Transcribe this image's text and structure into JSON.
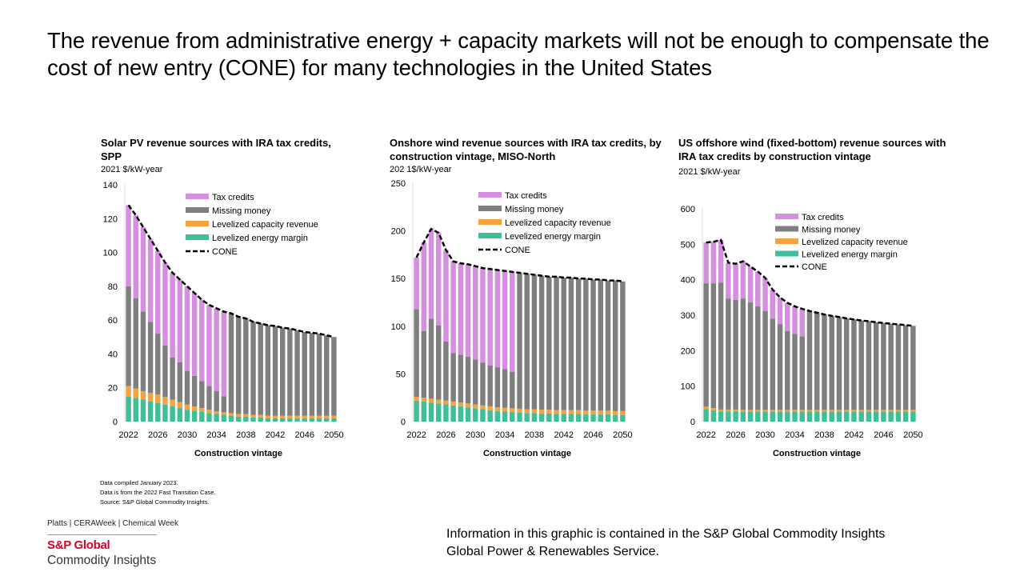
{
  "headline": "The revenue from administrative energy + capacity markets will not be enough to compensate the cost of new entry (CONE) for many technologies in the United States",
  "colors": {
    "tax_credits": "#d58ee0",
    "missing_money": "#7f7f7f",
    "capacity": "#f5a33f",
    "energy": "#3fbf98",
    "cone": "#000000"
  },
  "chart_data": [
    {
      "type": "bar",
      "stacked": true,
      "title": "Solar PV revenue sources with IRA tax credits, SPP",
      "unit": "2021 $/kW-year",
      "xlabel": "Construction vintage",
      "ylim": [
        0,
        140
      ],
      "y_ticks": [
        0,
        20,
        40,
        60,
        80,
        100,
        120,
        140
      ],
      "x_tick_labels": [
        "2022",
        "2026",
        "2030",
        "2034",
        "2038",
        "2042",
        "2046",
        "2050"
      ],
      "categories": [
        2022,
        2023,
        2024,
        2025,
        2026,
        2027,
        2028,
        2029,
        2030,
        2031,
        2032,
        2033,
        2034,
        2035,
        2036,
        2037,
        2038,
        2039,
        2040,
        2041,
        2042,
        2043,
        2044,
        2045,
        2046,
        2047,
        2048,
        2049,
        2050
      ],
      "legend": [
        "Tax credits",
        "Missing money",
        "Levelized capacity revenue",
        "Levelized energy margin",
        "CONE"
      ],
      "series": [
        {
          "name": "Levelized energy margin",
          "values": [
            15,
            14,
            13,
            12,
            11,
            10,
            9,
            8,
            7,
            6.5,
            6,
            5,
            4.5,
            4,
            3.5,
            3,
            3,
            2.5,
            2.5,
            2,
            2,
            2,
            2,
            2,
            2,
            2,
            2,
            2,
            2
          ]
        },
        {
          "name": "Levelized capacity revenue",
          "values": [
            6,
            5.5,
            5,
            5,
            5,
            4.5,
            4,
            3.5,
            3,
            2.5,
            2,
            2,
            1.5,
            1.5,
            1.5,
            1.5,
            1.5,
            1.5,
            1.5,
            1.5,
            1.5,
            1.5,
            1.5,
            1.5,
            1.5,
            1.5,
            1.5,
            1.5,
            1.5
          ]
        },
        {
          "name": "Missing money",
          "values": [
            59,
            53.5,
            47,
            42,
            36,
            30.5,
            25,
            23.5,
            20,
            18,
            16,
            14,
            12,
            9.5,
            59,
            57.5,
            56.5,
            55,
            54,
            53.5,
            53,
            52,
            51.5,
            50.5,
            49.5,
            49,
            48.5,
            47.5,
            46.5
          ]
        },
        {
          "name": "Tax credits",
          "values": [
            48,
            49,
            50,
            49,
            49,
            49,
            50,
            49,
            50,
            49,
            48,
            48,
            49,
            50,
            0,
            0,
            0,
            0,
            0,
            0,
            0,
            0,
            0,
            0,
            0,
            0,
            0,
            0,
            0
          ]
        }
      ],
      "cone": [
        128,
        122,
        115,
        108,
        101,
        94,
        88,
        84,
        80,
        76,
        72,
        69,
        67,
        65,
        64,
        62,
        61,
        59,
        58,
        57,
        56.5,
        55.5,
        55,
        54,
        53,
        52.5,
        52,
        51,
        50
      ]
    },
    {
      "type": "bar",
      "stacked": true,
      "title": "Onshore wind revenue sources with IRA tax credits, by construction vintage, MISO-North",
      "unit": "202 1$/kW-year",
      "xlabel": "Construction vintage",
      "ylim": [
        0,
        250
      ],
      "y_ticks": [
        0,
        50,
        100,
        150,
        200,
        250
      ],
      "x_tick_labels": [
        "2022",
        "2026",
        "2030",
        "2034",
        "2038",
        "2042",
        "2046",
        "2050"
      ],
      "categories": [
        2022,
        2023,
        2024,
        2025,
        2026,
        2027,
        2028,
        2029,
        2030,
        2031,
        2032,
        2033,
        2034,
        2035,
        2036,
        2037,
        2038,
        2039,
        2040,
        2041,
        2042,
        2043,
        2044,
        2045,
        2046,
        2047,
        2048,
        2049,
        2050
      ],
      "legend": [
        "Tax credits",
        "Missing money",
        "Levelized capacity revenue",
        "Levelized energy margin",
        "CONE"
      ],
      "series": [
        {
          "name": "Levelized energy margin",
          "values": [
            22,
            21,
            20,
            19,
            18,
            17,
            16,
            15,
            14,
            13,
            12,
            11,
            10.5,
            10,
            9.5,
            9,
            9,
            8.5,
            8.5,
            8,
            8,
            8,
            8,
            7.5,
            7.5,
            7.5,
            7.5,
            7,
            7
          ]
        },
        {
          "name": "Levelized capacity revenue",
          "values": [
            4,
            4,
            4,
            4,
            4,
            4,
            4,
            4,
            4,
            4,
            4,
            4,
            4,
            4,
            4,
            4,
            4,
            4,
            4,
            4,
            4,
            4,
            4,
            4,
            4,
            4,
            4,
            4,
            4
          ]
        },
        {
          "name": "Missing money",
          "values": [
            92,
            70,
            84,
            78,
            62,
            51,
            50,
            49,
            47,
            45,
            43,
            42,
            40.5,
            38,
            142.5,
            142,
            141,
            140.5,
            139.5,
            140,
            139,
            139,
            138,
            138.5,
            137.5,
            137.5,
            136.5,
            137,
            136
          ]
        },
        {
          "name": "Tax credits",
          "values": [
            54,
            93,
            94,
            97,
            96,
            96,
            96,
            97,
            98,
            99,
            101,
            102,
            103,
            105,
            0,
            0,
            0,
            0,
            0,
            0,
            0,
            0,
            0,
            0,
            0,
            0,
            0,
            0,
            0
          ]
        }
      ],
      "cone": [
        172,
        188,
        202,
        198,
        180,
        168,
        166,
        165,
        163,
        161,
        160,
        159,
        158,
        157,
        156,
        155,
        154,
        153,
        152,
        152,
        151,
        151,
        150,
        150,
        149,
        149,
        148,
        148,
        147
      ]
    },
    {
      "type": "bar",
      "stacked": true,
      "title": "US offshore wind (fixed-bottom) revenue sources with IRA tax credits by construction vintage",
      "unit": "2021 $/kW-year",
      "xlabel": "Construction vintage",
      "ylim": [
        0,
        600
      ],
      "y_ticks": [
        0,
        100,
        200,
        300,
        400,
        500,
        600
      ],
      "x_tick_labels": [
        "2022",
        "2026",
        "2030",
        "2034",
        "2038",
        "2042",
        "2046",
        "2050"
      ],
      "categories": [
        2022,
        2023,
        2024,
        2025,
        2026,
        2027,
        2028,
        2029,
        2030,
        2031,
        2032,
        2033,
        2034,
        2035,
        2036,
        2037,
        2038,
        2039,
        2040,
        2041,
        2042,
        2043,
        2044,
        2045,
        2046,
        2047,
        2048,
        2049,
        2050
      ],
      "legend": [
        "Tax credits",
        "Missing money",
        "Levelized capacity revenue",
        "Levelized energy margin",
        "CONE"
      ],
      "series": [
        {
          "name": "Levelized energy margin",
          "values": [
            35,
            32,
            29,
            29,
            29,
            28,
            28,
            28,
            28,
            28,
            28,
            28,
            28,
            28,
            28,
            28,
            28,
            28,
            28,
            28,
            28,
            28,
            28,
            28,
            28,
            28,
            28,
            28,
            28
          ]
        },
        {
          "name": "Levelized capacity revenue",
          "values": [
            7,
            6,
            5,
            5,
            5,
            5,
            5,
            5,
            5,
            5,
            5,
            5,
            5,
            5,
            5,
            5,
            5,
            5,
            5,
            5,
            5,
            5,
            5,
            5,
            5,
            5,
            5,
            5,
            5
          ]
        },
        {
          "name": "Missing money",
          "values": [
            348,
            352,
            358,
            313,
            309,
            314,
            303,
            292,
            279,
            257,
            242,
            222,
            214,
            207,
            279,
            274,
            269,
            265,
            262,
            258,
            255,
            252,
            250,
            247,
            245,
            243,
            241,
            239,
            237
          ]
        },
        {
          "name": "Tax credits",
          "values": [
            115,
            117,
            120,
            101,
            102,
            105,
            101,
            98,
            93,
            82,
            75,
            80,
            78,
            78,
            0,
            0,
            0,
            0,
            0,
            0,
            0,
            0,
            0,
            0,
            0,
            0,
            0,
            0,
            0
          ]
        }
      ],
      "cone": [
        505,
        507,
        512,
        448,
        445,
        452,
        437,
        423,
        405,
        372,
        350,
        335,
        325,
        318,
        312,
        307,
        302,
        298,
        295,
        291,
        288,
        285,
        283,
        280,
        278,
        276,
        274,
        272,
        270
      ]
    }
  ],
  "notes": [
    "Data compiled January 2023.",
    "Data is from the 2022 Fast Transition Case.",
    "Source: S&P Global Commodity Insights."
  ],
  "footer": {
    "brands": "Platts | CERAWeek | Chemical Week",
    "logo_line1": "S&P Global",
    "logo_line2": "Commodity Insights",
    "info_line1": "Information in this graphic is contained in the S&P Global Commodity Insights",
    "info_line2": "Global Power & Renewables Service."
  }
}
